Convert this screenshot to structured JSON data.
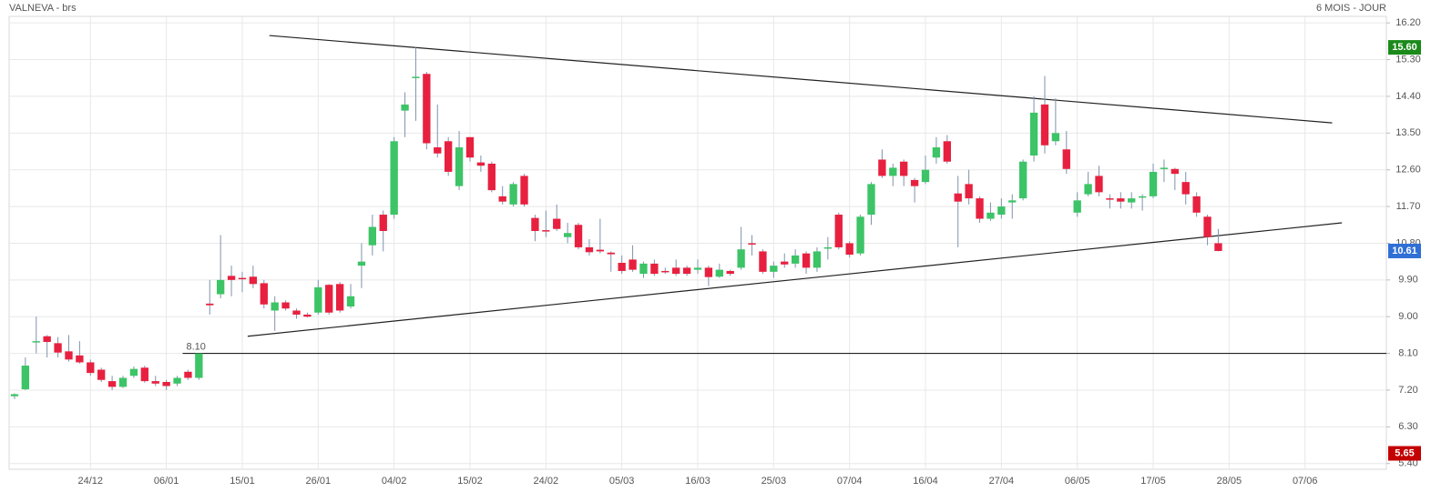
{
  "chart_data": {
    "type": "candlestick",
    "title": "VALNEVA - brs",
    "subtitle": "6 MOIS - JOUR",
    "categories": [
      null,
      null,
      null,
      null,
      null,
      null,
      null,
      "24/12",
      null,
      null,
      null,
      null,
      null,
      null,
      "06/01",
      null,
      null,
      null,
      null,
      null,
      null,
      "15/01",
      null,
      null,
      null,
      null,
      null,
      null,
      "26/01",
      null,
      null,
      null,
      null,
      null,
      null,
      "04/02",
      null,
      null,
      null,
      null,
      null,
      null,
      "15/02",
      null,
      null,
      null,
      null,
      null,
      null,
      "24/02",
      null,
      null,
      null,
      null,
      null,
      null,
      "05/03",
      null,
      null,
      null,
      null,
      null,
      null,
      "16/03",
      null,
      null,
      null,
      null,
      null,
      null,
      "25/03",
      null,
      null,
      null,
      null,
      null,
      null,
      "07/04",
      null,
      null,
      null,
      null,
      null,
      null,
      "16/04",
      null,
      null,
      null,
      null,
      null,
      null,
      "27/04",
      null,
      null,
      null,
      null,
      null,
      null,
      "06/05",
      null,
      null,
      null,
      null,
      null,
      null,
      "17/05",
      null,
      null,
      null,
      null,
      null,
      null,
      "28/05",
      null,
      null,
      null,
      null,
      null,
      null,
      "07/06",
      null,
      null,
      null,
      null,
      null,
      null,
      null
    ],
    "open": [
      7.05,
      7.22,
      8.38,
      8.52,
      8.35,
      8.15,
      8.05,
      7.88,
      7.7,
      7.42,
      7.28,
      7.55,
      7.75,
      7.42,
      7.4,
      7.36,
      7.65,
      7.5,
      9.32,
      9.55,
      10.0,
      9.95,
      9.98,
      9.82,
      9.15,
      9.35,
      9.15,
      9.05,
      9.1,
      9.78,
      9.8,
      9.25,
      10.25,
      10.75,
      11.5,
      11.5,
      14.05,
      14.85,
      14.95,
      13.15,
      13.3,
      12.2,
      13.4,
      12.78,
      12.75,
      11.95,
      11.75,
      12.45,
      11.42,
      11.12,
      11.4,
      10.95,
      11.25,
      10.7,
      10.64,
      10.57,
      10.32,
      10.4,
      10.05,
      10.3,
      10.12,
      10.2,
      10.2,
      10.15,
      10.2,
      9.98,
      10.12,
      10.2,
      10.8,
      10.6,
      10.1,
      10.35,
      10.3,
      10.55,
      10.2,
      10.68,
      11.5,
      10.8,
      10.55,
      11.5,
      12.85,
      12.45,
      12.8,
      12.35,
      12.3,
      12.9,
      13.3,
      12.02,
      12.25,
      11.9,
      11.4,
      11.5,
      11.8,
      11.9,
      12.95,
      14.2,
      13.3,
      13.1,
      11.55,
      12.0,
      12.45,
      11.9,
      11.9,
      11.8,
      11.93,
      11.95,
      12.62,
      12.62,
      12.3,
      11.95,
      11.45,
      10.8,
      null,
      null,
      null,
      null,
      null,
      null,
      null,
      null,
      null,
      null,
      null,
      null,
      null,
      null,
      null
    ],
    "high": [
      7.12,
      8.0,
      9.0,
      8.55,
      8.5,
      8.55,
      8.4,
      7.95,
      7.75,
      7.55,
      7.55,
      7.78,
      7.8,
      7.55,
      7.45,
      7.55,
      7.7,
      8.1,
      9.9,
      11.0,
      10.25,
      10.1,
      10.25,
      9.9,
      9.5,
      9.4,
      9.2,
      9.1,
      9.9,
      9.8,
      9.85,
      9.8,
      10.8,
      11.5,
      11.6,
      13.4,
      14.5,
      15.6,
      15.0,
      14.2,
      13.4,
      13.55,
      13.4,
      12.95,
      12.8,
      12.2,
      12.3,
      12.5,
      11.5,
      11.6,
      11.75,
      11.3,
      11.3,
      10.9,
      11.4,
      10.6,
      10.5,
      10.75,
      10.35,
      10.4,
      10.2,
      10.4,
      10.25,
      10.4,
      10.25,
      10.3,
      10.15,
      11.2,
      11.0,
      10.65,
      10.35,
      10.55,
      10.65,
      10.6,
      10.7,
      10.95,
      11.55,
      10.85,
      11.5,
      12.3,
      13.1,
      12.75,
      12.85,
      12.4,
      12.95,
      13.4,
      13.45,
      12.45,
      12.6,
      11.95,
      11.8,
      11.9,
      12.0,
      12.85,
      14.4,
      14.9,
      14.35,
      13.55,
      12.05,
      12.55,
      12.7,
      12.0,
      12.05,
      12.05,
      12.0,
      12.75,
      12.85,
      12.65,
      12.55,
      12.05,
      11.5,
      11.15,
      null,
      null,
      null,
      null,
      null,
      null,
      null,
      null,
      null,
      null,
      null,
      null,
      null,
      null,
      null
    ],
    "low": [
      6.98,
      7.2,
      8.1,
      8.0,
      8.0,
      7.9,
      7.85,
      7.55,
      7.4,
      7.2,
      7.25,
      7.5,
      7.38,
      7.3,
      7.2,
      7.3,
      7.45,
      7.45,
      9.05,
      9.45,
      9.5,
      9.6,
      9.7,
      9.2,
      8.65,
      9.15,
      8.95,
      8.98,
      9.05,
      9.05,
      9.1,
      9.2,
      9.7,
      10.5,
      10.6,
      11.4,
      13.4,
      13.8,
      13.1,
      12.9,
      12.45,
      12.1,
      12.8,
      12.55,
      12.05,
      11.75,
      11.7,
      11.7,
      10.85,
      10.95,
      11.1,
      10.8,
      10.65,
      10.5,
      10.55,
      10.1,
      10.05,
      10.1,
      9.95,
      10.0,
      10.05,
      10.0,
      10.0,
      10.05,
      9.75,
      9.95,
      10.0,
      10.15,
      10.5,
      10.05,
      9.95,
      10.2,
      10.2,
      10.05,
      10.1,
      10.4,
      10.65,
      10.45,
      10.5,
      11.25,
      12.4,
      12.2,
      12.2,
      11.8,
      12.25,
      12.75,
      12.75,
      10.7,
      11.75,
      11.3,
      11.35,
      11.4,
      11.4,
      11.85,
      12.8,
      13.0,
      13.2,
      12.5,
      11.45,
      11.95,
      11.95,
      11.65,
      11.65,
      11.65,
      11.6,
      11.9,
      12.3,
      12.1,
      11.75,
      11.45,
      10.75,
      10.6,
      null,
      null,
      null,
      null,
      null,
      null,
      null,
      null,
      null,
      null,
      null,
      null,
      null,
      null,
      null
    ],
    "close": [
      7.1,
      7.8,
      8.4,
      8.38,
      8.12,
      7.95,
      7.88,
      7.62,
      7.45,
      7.28,
      7.5,
      7.72,
      7.42,
      7.36,
      7.3,
      7.5,
      7.5,
      8.1,
      9.28,
      9.9,
      9.9,
      9.92,
      9.8,
      9.3,
      9.35,
      9.2,
      9.05,
      9.0,
      9.72,
      9.1,
      9.15,
      9.5,
      10.35,
      11.2,
      11.1,
      13.3,
      14.2,
      14.88,
      13.25,
      13.0,
      12.55,
      13.15,
      12.9,
      12.7,
      12.1,
      11.82,
      12.25,
      11.75,
      11.1,
      11.1,
      11.15,
      11.05,
      10.7,
      10.58,
      10.6,
      10.53,
      10.12,
      10.15,
      10.3,
      10.05,
      10.1,
      10.05,
      10.05,
      10.2,
      9.97,
      10.15,
      10.05,
      10.65,
      10.78,
      10.1,
      10.25,
      10.28,
      10.5,
      10.2,
      10.6,
      10.7,
      10.7,
      10.52,
      11.45,
      12.25,
      12.45,
      12.65,
      12.45,
      12.2,
      12.6,
      13.15,
      12.8,
      11.82,
      11.9,
      11.4,
      11.55,
      11.7,
      11.85,
      12.8,
      14.0,
      13.2,
      13.5,
      12.62,
      11.85,
      12.25,
      12.05,
      11.88,
      11.82,
      11.9,
      11.95,
      12.55,
      12.65,
      12.5,
      12.0,
      11.55,
      10.95,
      10.61,
      null,
      null,
      null,
      null,
      null,
      null,
      null,
      null,
      null,
      null,
      null,
      null,
      null,
      null,
      null
    ],
    "up_color": "#3cc467",
    "down_color": "#e8203f",
    "wick_color": "#7f93ad",
    "ylim": [
      5.26,
      16.36
    ],
    "yticks": [
      {
        "value": 5.4,
        "label": "5.40"
      },
      {
        "value": 6.3,
        "label": "6.30"
      },
      {
        "value": 7.2,
        "label": "7.20"
      },
      {
        "value": 8.1,
        "label": "8.10"
      },
      {
        "value": 9.0,
        "label": "9.00"
      },
      {
        "value": 9.9,
        "label": "9.90"
      },
      {
        "value": 10.8,
        "label": "10.80"
      },
      {
        "value": 11.7,
        "label": "11.70"
      },
      {
        "value": 12.6,
        "label": "12.60"
      },
      {
        "value": 13.5,
        "label": "13.50"
      },
      {
        "value": 14.4,
        "label": "14.40"
      },
      {
        "value": 15.3,
        "label": "15.30"
      },
      {
        "value": 16.2,
        "label": "16.20"
      }
    ],
    "grid": true,
    "trend_lines": [
      {
        "from": [
          23.5,
          15.89
        ],
        "to": [
          121.5,
          13.75
        ]
      },
      {
        "from": [
          21.5,
          8.52
        ],
        "to": [
          122.4,
          11.3
        ]
      }
    ],
    "level": {
      "value": 8.1,
      "label": "8.10",
      "from": 15.5
    },
    "price_tags": [
      {
        "value": 15.6,
        "label": "15.60",
        "color": "#1a8a1a"
      },
      {
        "value": 10.61,
        "label": "10.61",
        "color": "#2f6fd6"
      },
      {
        "value": 5.65,
        "label": "5.65",
        "color": "#c40000"
      }
    ]
  }
}
